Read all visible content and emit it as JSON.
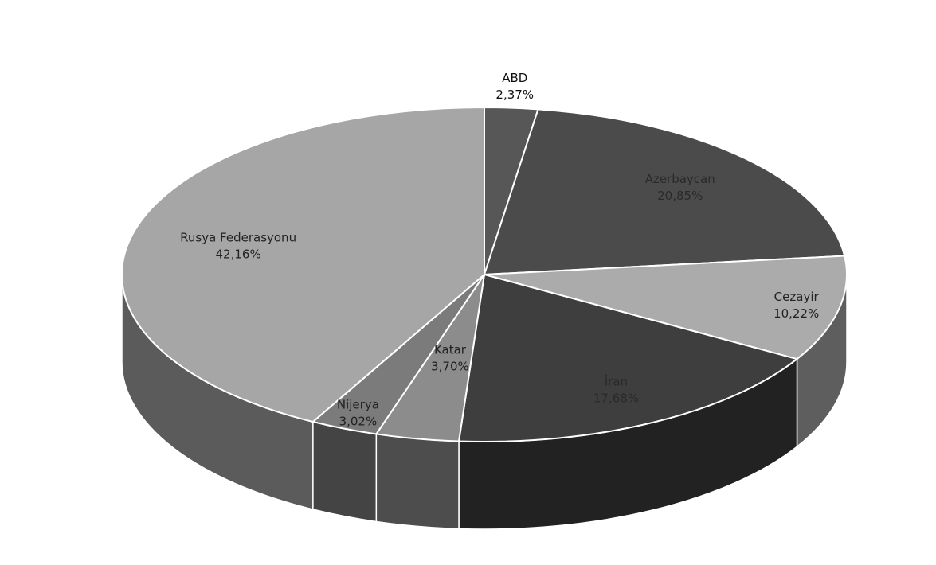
{
  "chart_data": {
    "type": "pie3d",
    "categories": [
      "ABD",
      "Azerbaycan",
      "Cezayir",
      "İran",
      "Katar",
      "Nijerya",
      "Rusya Federasyonu"
    ],
    "values": [
      2.37,
      20.85,
      10.22,
      17.68,
      3.7,
      3.02,
      42.16
    ],
    "value_labels": [
      "2,37%",
      "20,85%",
      "10,22%",
      "17,68%",
      "3,70%",
      "3,02%",
      "42,16%"
    ],
    "colors": [
      "#575757",
      "#4b4b4b",
      "#ababab",
      "#3e3e3e",
      "#8c8c8c",
      "#7b7b7b",
      "#a6a6a6"
    ]
  }
}
